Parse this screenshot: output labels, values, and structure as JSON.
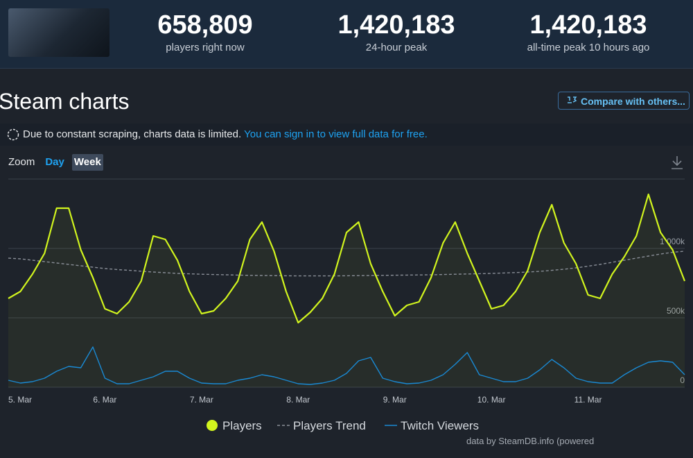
{
  "header": {
    "stats": [
      {
        "value": "658,809",
        "label": "players right now"
      },
      {
        "value": "1,420,183",
        "label": "24-hour peak"
      },
      {
        "value": "1,420,183",
        "label": "all-time peak 10 hours ago"
      }
    ]
  },
  "title": "Steam charts",
  "compare_button": "Compare with others...",
  "notice": {
    "text": "Due to constant scraping, charts data is limited.",
    "link": "You can sign in to view full data for free."
  },
  "zoom": {
    "label": "Zoom",
    "options": [
      "Day",
      "Week"
    ]
  },
  "credit": "data by SteamDB.info (powered",
  "chart_data": {
    "type": "line",
    "categories": [
      "5. Mar",
      null,
      null,
      null,
      null,
      null,
      null,
      null,
      "6. Mar",
      null,
      null,
      null,
      null,
      null,
      null,
      null,
      "7. Mar",
      null,
      null,
      null,
      null,
      null,
      null,
      null,
      "8. Mar",
      null,
      null,
      null,
      null,
      null,
      null,
      null,
      "9. Mar",
      null,
      null,
      null,
      null,
      null,
      null,
      null,
      "10. Mar",
      null,
      null,
      null,
      null,
      null,
      null,
      null,
      "11. Mar",
      null,
      null,
      null,
      null,
      null,
      null,
      null,
      null
    ],
    "series": [
      {
        "name": "Players",
        "color": "#d2f51e",
        "values": [
          640000,
          690000,
          815000,
          965000,
          1290000,
          1290000,
          990000,
          790000,
          565000,
          530000,
          615000,
          765000,
          1090000,
          1065000,
          915000,
          690000,
          530000,
          550000,
          640000,
          765000,
          1065000,
          1190000,
          980000,
          690000,
          465000,
          540000,
          640000,
          815000,
          1115000,
          1190000,
          890000,
          690000,
          515000,
          590000,
          615000,
          790000,
          1040000,
          1190000,
          965000,
          765000,
          565000,
          590000,
          690000,
          840000,
          1115000,
          1315000,
          1040000,
          890000,
          665000,
          640000,
          815000,
          940000,
          1090000,
          1390000,
          1115000,
          990000,
          765000
        ]
      },
      {
        "name": "Players Trend",
        "color": "#8a8f98",
        "dashed": true,
        "values": [
          930000,
          925000,
          915000,
          905000,
          895000,
          885000,
          875000,
          865000,
          855000,
          848000,
          842000,
          836000,
          830000,
          825000,
          820000,
          817000,
          814000,
          812000,
          810000,
          808000,
          806000,
          805000,
          804000,
          803000,
          802000,
          802000,
          802000,
          802000,
          803000,
          804000,
          805000,
          806000,
          807000,
          808000,
          809000,
          810000,
          812000,
          814000,
          816000,
          818000,
          820000,
          823000,
          826000,
          830000,
          835000,
          842000,
          850000,
          860000,
          872000,
          885000,
          900000,
          915000,
          930000,
          945000,
          960000,
          972000,
          980000
        ]
      },
      {
        "name": "Twitch Viewers",
        "color": "#1a8ad4",
        "values": [
          50000,
          30000,
          40000,
          65000,
          115000,
          150000,
          140000,
          290000,
          65000,
          25000,
          25000,
          50000,
          75000,
          115000,
          115000,
          65000,
          30000,
          25000,
          25000,
          50000,
          65000,
          90000,
          75000,
          50000,
          25000,
          20000,
          30000,
          50000,
          100000,
          190000,
          215000,
          65000,
          40000,
          25000,
          30000,
          50000,
          90000,
          165000,
          250000,
          90000,
          65000,
          40000,
          40000,
          65000,
          125000,
          200000,
          140000,
          65000,
          40000,
          30000,
          30000,
          90000,
          140000,
          180000,
          190000,
          180000,
          90000
        ]
      }
    ],
    "ylim": [
      0,
      1500000
    ],
    "yticks": [
      0,
      {
        "value": 500000,
        "label": "500k"
      },
      {
        "value": 1000000,
        "label": "1 000k"
      }
    ],
    "grid": true
  }
}
